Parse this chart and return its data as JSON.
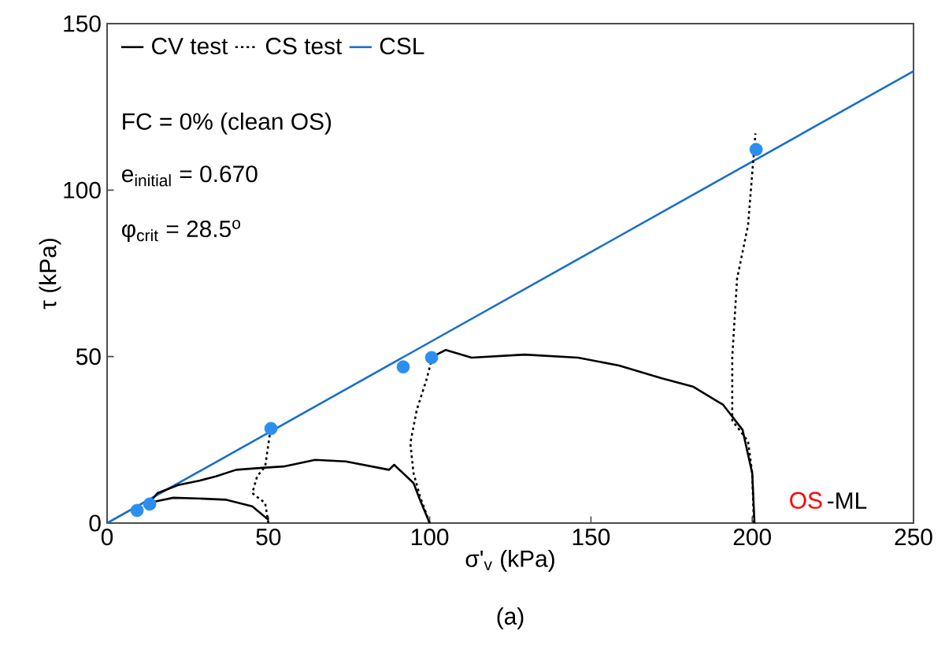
{
  "chart_data": {
    "type": "line",
    "xlabel": "σ'$_{v}$ (kPa)",
    "ylabel": "τ (kPa)",
    "xlim": [
      0,
      250
    ],
    "ylim": [
      0,
      150
    ],
    "xticks": [
      0,
      50,
      100,
      150,
      200,
      250
    ],
    "yticks": [
      0,
      50,
      100,
      150
    ],
    "legend": "top left",
    "annotations": [
      "FC = 0% (clean OS)",
      "e$_{initial}$ = 0.670",
      "φ$_{crit}$ = 28.5$^{o}$",
      "OS",
      "-ML",
      "(a)"
    ],
    "series": [
      {
        "name": "CV test",
        "type": "line",
        "line_style": "solid",
        "color": "#000000",
        "x": [
          50,
          45,
          37,
          28,
          20.5,
          15.6,
          13
        ],
        "values": [
          1,
          5,
          7,
          7.4,
          7.6,
          6.6,
          6
        ]
      },
      {
        "name": "CS test",
        "type": "line",
        "line_style": "dotted",
        "color": "#000000",
        "x": [
          50,
          49,
          45,
          46.5,
          49,
          50.5
        ],
        "values": [
          0,
          6,
          9,
          14,
          17,
          27
        ]
      },
      {
        "name": "CSL",
        "type": "line",
        "line_style": "solid",
        "color": "#1a6fc8",
        "x": [
          0,
          250
        ],
        "values": [
          0,
          135.7
        ]
      },
      {
        "type": "line",
        "line_style": "solid",
        "color": "#000000",
        "x": [
          100,
          97,
          95,
          89,
          87.4,
          74,
          64.5,
          54.7,
          48,
          40,
          33.7,
          28.8,
          22,
          15.6,
          13
        ],
        "values": [
          0,
          7,
          12,
          17.5,
          16,
          18.5,
          19,
          17,
          16.6,
          16,
          14,
          12.8,
          11.4,
          9,
          6
        ]
      },
      {
        "type": "line",
        "line_style": "solid",
        "color": "#000000",
        "x": [
          200.7,
          200,
          197,
          191,
          181.6,
          172,
          158.7,
          146,
          129.4,
          113,
          105,
          101
        ],
        "values": [
          0,
          15,
          28,
          35.5,
          41,
          43.5,
          47.3,
          49.7,
          50.6,
          49.7,
          52,
          50
        ]
      },
      {
        "type": "line",
        "line_style": "dotted",
        "color": "#000000",
        "x": [
          100,
          97,
          95,
          94,
          96,
          99,
          100.6
        ],
        "values": [
          0,
          8,
          15,
          24,
          34,
          43,
          49
        ]
      },
      {
        "type": "line",
        "line_style": "dotted",
        "color": "#000000",
        "x": [
          200.5,
          200,
          198.7,
          193.8,
          193.8,
          195.3,
          198.7,
          200,
          201
        ],
        "values": [
          0,
          15,
          24.6,
          30.8,
          49.7,
          73.4,
          89.4,
          105,
          117
        ]
      },
      {
        "type": "scatter",
        "marker": "circle",
        "color": "#2b8ff0",
        "x": [
          9.3,
          13.2,
          50.8,
          91.8,
          100.6,
          201.2
        ],
        "values": [
          3.8,
          5.7,
          28.4,
          46.9,
          49.7,
          112.2
        ]
      }
    ]
  }
}
